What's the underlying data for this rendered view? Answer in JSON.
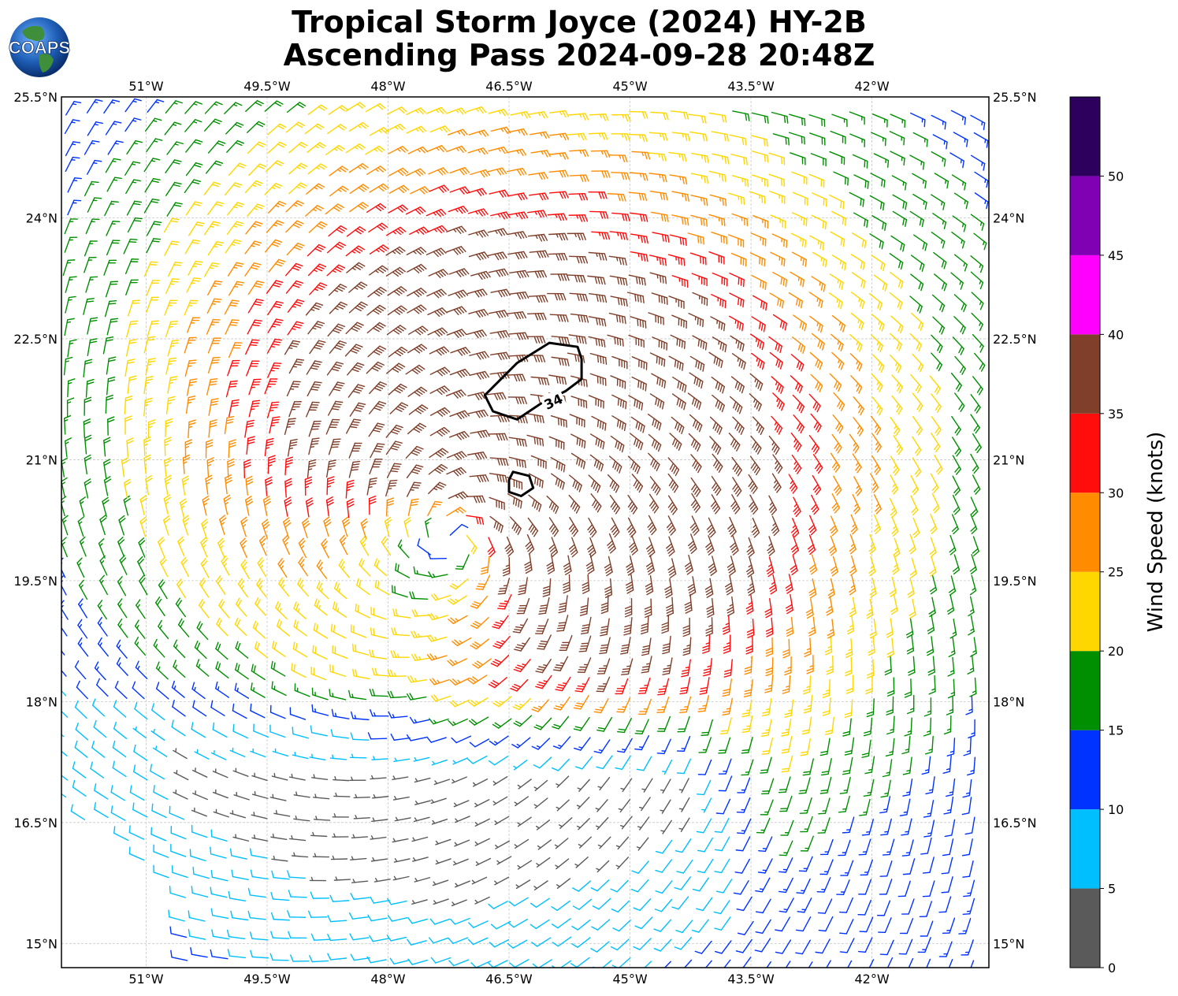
{
  "logo": {
    "text": "COAPS"
  },
  "header": {
    "title_line1": "Tropical Storm Joyce (2024) HY-2B",
    "title_line2": "Ascending Pass 2024-09-28 20:48Z"
  },
  "chart_data": {
    "type": "wind_barb_map",
    "lon_range": [
      -52.05,
      -40.55
    ],
    "lat_range": [
      14.7,
      25.5
    ],
    "x_ticks": [
      {
        "value": -51,
        "label": "51°W"
      },
      {
        "value": -49.5,
        "label": "49.5°W"
      },
      {
        "value": -48,
        "label": "48°W"
      },
      {
        "value": -46.5,
        "label": "46.5°W"
      },
      {
        "value": -45,
        "label": "45°W"
      },
      {
        "value": -43.5,
        "label": "43.5°W"
      },
      {
        "value": -42,
        "label": "42°W"
      }
    ],
    "y_ticks": [
      {
        "value": 25.5,
        "label": "25.5°N"
      },
      {
        "value": 24,
        "label": "24°N"
      },
      {
        "value": 22.5,
        "label": "22.5°N"
      },
      {
        "value": 21,
        "label": "21°N"
      },
      {
        "value": 19.5,
        "label": "19.5°N"
      },
      {
        "value": 18,
        "label": "18°N"
      },
      {
        "value": 16.5,
        "label": "16.5°N"
      },
      {
        "value": 15,
        "label": "15°N"
      }
    ],
    "grid": true,
    "center": {
      "lon": -47.2,
      "lat": 20.0
    },
    "contour": {
      "level_label": "34",
      "unit": "kt",
      "polygons": [
        [
          [
            -45.65,
            22.4
          ],
          [
            -46.0,
            22.45
          ],
          [
            -46.4,
            22.2
          ],
          [
            -46.6,
            22.0
          ],
          [
            -46.8,
            21.8
          ],
          [
            -46.7,
            21.6
          ],
          [
            -46.4,
            21.5
          ],
          [
            -46.1,
            21.7
          ],
          [
            -45.8,
            21.85
          ],
          [
            -45.6,
            22.0
          ],
          [
            -45.6,
            22.25
          ]
        ],
        [
          [
            -46.45,
            20.85
          ],
          [
            -46.25,
            20.8
          ],
          [
            -46.2,
            20.65
          ],
          [
            -46.35,
            20.55
          ],
          [
            -46.5,
            20.6
          ],
          [
            -46.5,
            20.75
          ]
        ]
      ]
    },
    "colorbar": {
      "label": "Wind Speed (knots)",
      "range": [
        0,
        55
      ],
      "bins": [
        {
          "from": 0,
          "to": 5,
          "color": "#5a5a5a"
        },
        {
          "from": 5,
          "to": 10,
          "color": "#00bfff"
        },
        {
          "from": 10,
          "to": 15,
          "color": "#0033ff"
        },
        {
          "from": 15,
          "to": 20,
          "color": "#008f00"
        },
        {
          "from": 20,
          "to": 25,
          "color": "#ffd700"
        },
        {
          "from": 25,
          "to": 30,
          "color": "#ff8c00"
        },
        {
          "from": 30,
          "to": 35,
          "color": "#ff0d0d"
        },
        {
          "from": 35,
          "to": 40,
          "color": "#7f3f2a"
        },
        {
          "from": 40,
          "to": 45,
          "color": "#ff00ff"
        },
        {
          "from": 45,
          "to": 50,
          "color": "#8000b3"
        },
        {
          "from": 50,
          "to": 55,
          "color": "#2e005e"
        }
      ],
      "ticks": [
        0,
        5,
        10,
        15,
        20,
        25,
        30,
        35,
        40,
        45,
        50
      ]
    }
  }
}
